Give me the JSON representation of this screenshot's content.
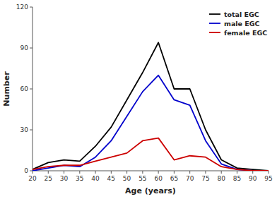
{
  "chart_data": {
    "type": "line",
    "xlabel": "Age (years)",
    "ylabel": "Number",
    "x": [
      20,
      25,
      30,
      35,
      40,
      45,
      50,
      55,
      60,
      65,
      70,
      75,
      80,
      85,
      90,
      95
    ],
    "series": [
      {
        "name": "total EGC",
        "color": "#000000",
        "values": [
          1,
          6,
          8,
          7,
          18,
          32,
          52,
          72,
          94,
          60,
          60,
          30,
          8,
          2,
          1,
          0
        ]
      },
      {
        "name": "male EGC",
        "color": "#0000cc",
        "values": [
          0,
          2,
          4,
          3,
          10,
          22,
          40,
          58,
          70,
          52,
          48,
          22,
          5,
          1,
          0,
          0
        ]
      },
      {
        "name": "female EGC",
        "color": "#cc0000",
        "values": [
          1,
          3,
          4,
          4,
          7,
          10,
          13,
          22,
          24,
          8,
          11,
          10,
          3,
          1,
          0,
          0
        ]
      }
    ],
    "xlim": [
      20,
      95
    ],
    "ylim": [
      0,
      120
    ],
    "xticks": [
      20,
      25,
      30,
      35,
      40,
      45,
      50,
      55,
      60,
      65,
      70,
      75,
      80,
      85,
      90,
      95
    ],
    "yticks": [
      0,
      30,
      60,
      90,
      120
    ],
    "legend": "upper-right",
    "grid": false
  }
}
